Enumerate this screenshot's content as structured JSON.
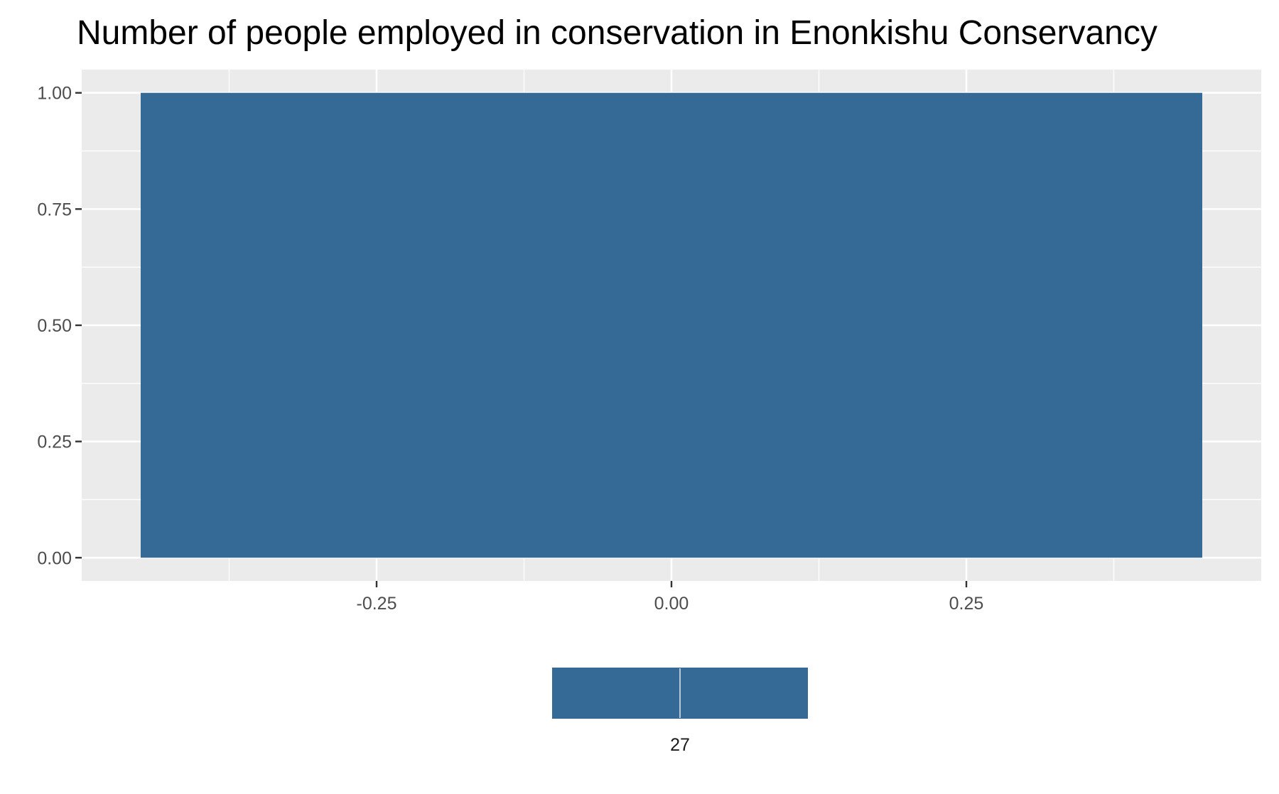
{
  "chart_data": {
    "type": "bar",
    "title": "Number of people employed in conservation in Enonkishu Conservancy",
    "xlabel": "",
    "ylabel": "",
    "x": [
      0
    ],
    "values": [
      1
    ],
    "bar_width": 0.9,
    "xlim": [
      -0.5,
      0.5
    ],
    "ylim": [
      -0.05,
      1.05
    ],
    "x_ticks": [
      -0.25,
      0.0,
      0.25
    ],
    "x_tick_labels": [
      "-0.25",
      "0.00",
      "0.25"
    ],
    "y_ticks": [
      0,
      0.25,
      0.5,
      0.75,
      1.0
    ],
    "y_tick_labels": [
      "0.00",
      "0.25",
      "0.50",
      "0.75",
      "1.00"
    ],
    "grid": true,
    "legend": {
      "placement": "bottom",
      "entries": [
        {
          "label": "27",
          "color": "#366a96"
        }
      ]
    },
    "colors": {
      "bar": "#366a96",
      "panel": "#ebebeb",
      "grid": "#ffffff"
    }
  }
}
